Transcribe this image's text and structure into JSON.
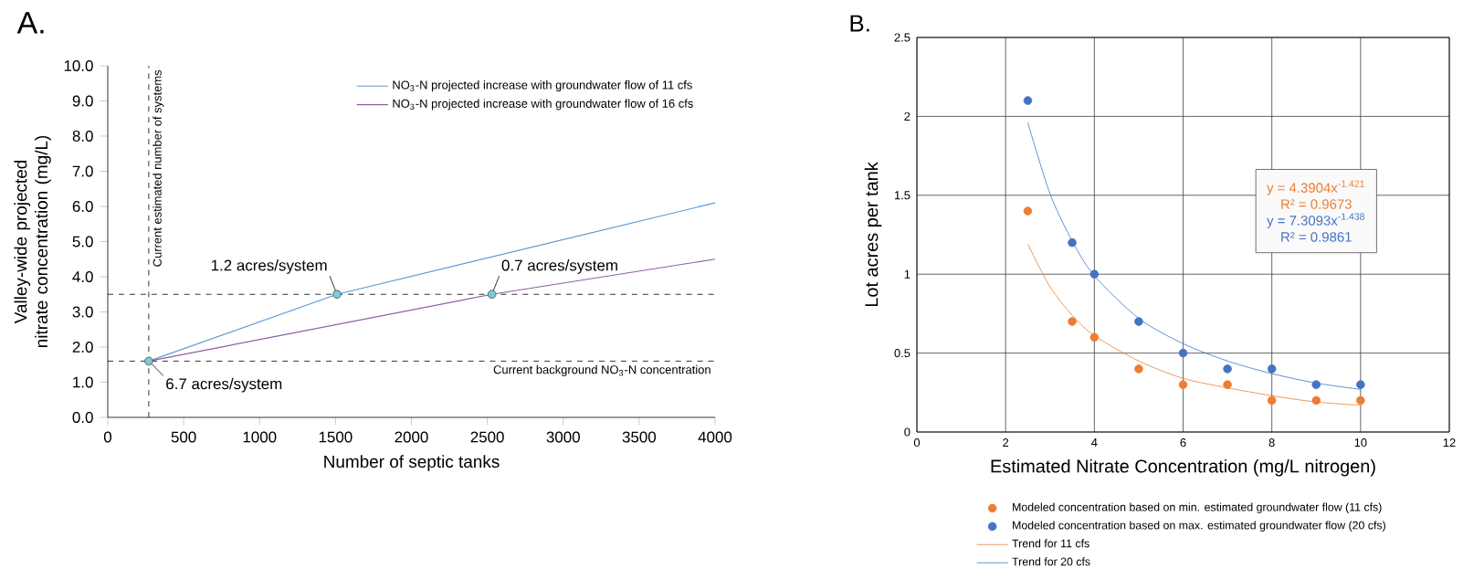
{
  "chart_data": [
    {
      "type": "line",
      "title": "A.",
      "xlabel": "Number of septic tanks",
      "ylabel": "Valley-wide projected nitrate concentration (mg/L)",
      "xlim": [
        0,
        4000
      ],
      "ylim": [
        0,
        10
      ],
      "xticks": [
        0,
        500,
        1000,
        1500,
        2000,
        2500,
        3000,
        3500,
        4000
      ],
      "yticks": [
        {
          "value": 0,
          "label": "0.0"
        },
        {
          "value": 1,
          "label": "1.0"
        },
        {
          "value": 2,
          "label": "2.0"
        },
        {
          "value": 3,
          "label": "3.0"
        },
        {
          "value": 4,
          "label": "4.0"
        },
        {
          "value": 5,
          "label": "5.0"
        },
        {
          "value": 6,
          "label": "6.0"
        },
        {
          "value": 7,
          "label": "7.0"
        },
        {
          "value": 8,
          "label": "8.0"
        },
        {
          "value": 9,
          "label": "9.0"
        },
        {
          "value": 10,
          "label": "10.0"
        }
      ],
      "legend": "top right",
      "series": [
        {
          "name": "NO$_{3}$-N projected increase with groundwater flow of 11 cfs",
          "color": "#5b9bd5",
          "x": [
            270,
            1510,
            4000
          ],
          "values": [
            1.6,
            3.5,
            6.1
          ]
        },
        {
          "name": "NO$_{3}$-N projected increase with groundwater flow of 16 cfs",
          "color": "#8e5ea2",
          "x": [
            270,
            2530,
            4000
          ],
          "values": [
            1.6,
            3.5,
            4.5
          ]
        },
        {
          "type": "scatter",
          "color": "#7ec8dc",
          "x": [
            270,
            1510,
            2530
          ],
          "values": [
            1.6,
            3.5,
            3.5
          ]
        }
      ],
      "ref_lines": [
        {
          "axis": "x",
          "value": 270,
          "label": "Current estimated number of systems",
          "line_style": "dashed"
        },
        {
          "axis": "y",
          "value": 3.5,
          "line_style": "dashed"
        },
        {
          "axis": "y",
          "value": 1.6,
          "label": "Current background NO$_{3}$-N concentration",
          "line_style": "dashed"
        }
      ],
      "annotations": [
        {
          "text": "1.2 acres/system",
          "x": 1510,
          "y": 3.5
        },
        {
          "text": "0.7 acres/system",
          "x": 2530,
          "y": 3.5
        },
        {
          "text": "6.7 acres/system",
          "x": 270,
          "y": 1.6
        }
      ]
    },
    {
      "type": "scatter",
      "title": "B.",
      "xlabel": "Estimated Nitrate Concentration (mg/L nitrogen)",
      "ylabel": "Lot acres per tank",
      "xlim": [
        0,
        12
      ],
      "ylim": [
        0,
        2.5
      ],
      "xticks": [
        0,
        2,
        4,
        6,
        8,
        10,
        12
      ],
      "yticks": [
        0,
        0.5,
        1,
        1.5,
        2,
        2.5
      ],
      "grid": true,
      "legend": "bottom",
      "x": [
        2.5,
        3.5,
        4,
        5,
        6,
        7,
        8,
        9,
        10
      ],
      "series": [
        {
          "name": "Modeled concentration based on min. estimated groundwater flow (11 cfs)",
          "color": "#ed7d31",
          "values": [
            1.4,
            0.7,
            0.6,
            0.4,
            0.3,
            0.3,
            0.2,
            0.2,
            0.2
          ]
        },
        {
          "name": "Modeled concentration based on max. estimated groundwater flow (20 cfs)",
          "color": "#4472c4",
          "values": [
            2.1,
            1.2,
            1.0,
            0.7,
            0.5,
            0.4,
            0.4,
            0.3,
            0.3
          ]
        },
        {
          "type": "line",
          "name": "Trend for 11 cfs",
          "color": "#ed7d31",
          "x": [
            2.5,
            3,
            3.5,
            4,
            5,
            6,
            7,
            8,
            9,
            10
          ],
          "values": [
            1.19,
            0.92,
            0.74,
            0.61,
            0.45,
            0.34,
            0.28,
            0.23,
            0.19,
            0.17
          ]
        },
        {
          "type": "line",
          "name": "Trend for 20 cfs",
          "color": "#4472c4",
          "x": [
            2.5,
            3,
            3.5,
            4,
            5,
            6,
            7,
            8,
            9,
            10
          ],
          "values": [
            1.96,
            1.51,
            1.21,
            0.99,
            0.72,
            0.56,
            0.45,
            0.37,
            0.31,
            0.27
          ]
        }
      ],
      "annotations": [
        "y = 4.3904x$^{-1.421}$",
        "R² = 0.9673",
        "y = 7.3093x$^{-1.438}$",
        "R² = 0.9861"
      ]
    }
  ]
}
